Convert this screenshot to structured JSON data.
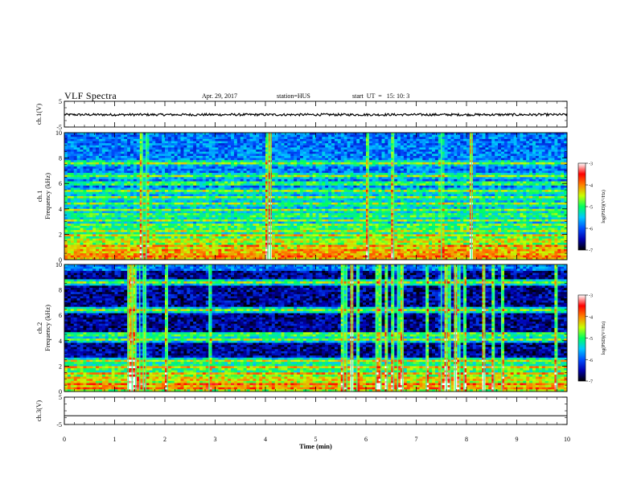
{
  "header": {
    "title": "VLF Spectra",
    "date": "Apr. 29, 2017",
    "station": "station=HUS",
    "start": "start  UT  =   15: 10: 3"
  },
  "chart_data": [
    {
      "type": "line",
      "panel": "ch1-waveform",
      "ylabel": "ch.1(V)",
      "ylim": [
        -5,
        5
      ],
      "yticks": [
        "5",
        "-5"
      ],
      "x": [
        0,
        10
      ],
      "series": [
        {
          "values": [
            -0.2,
            -0.2
          ]
        }
      ]
    },
    {
      "type": "heatmap",
      "panel": "ch1-spectrogram",
      "ylabel": "ch.1\nFrequency  (kHz)",
      "ylim": [
        0,
        10
      ],
      "yticks": [
        "0",
        "2",
        "4",
        "6",
        "8",
        "10"
      ],
      "xlim": [
        0,
        10
      ],
      "horizontal_bands_khz": [
        0.2,
        0.5,
        0.8,
        1.1,
        1.5,
        1.9,
        2.3,
        2.7,
        3.1,
        3.5,
        3.9,
        4.4,
        4.9,
        5.4,
        6.0,
        6.6,
        7.6
      ],
      "strong_bursts_min": [
        1.55,
        1.63,
        4.05,
        4.1,
        6.05,
        6.55,
        7.5,
        8.1
      ],
      "colorbar": {
        "label": "log(PSD)(V²/Hz)",
        "ticks": [
          "-3",
          "-4",
          "-5",
          "-6",
          "-7"
        ],
        "range": [
          -7,
          -3
        ],
        "colors": [
          "#000000",
          "#0000b0",
          "#0050ff",
          "#00c8ff",
          "#00ff60",
          "#c8ff00",
          "#ff8000",
          "#ff0000",
          "#ffffff"
        ]
      }
    },
    {
      "type": "heatmap",
      "panel": "ch2-spectrogram",
      "ylabel": "ch.2\nFrequency  (kHz)",
      "ylim": [
        0,
        10
      ],
      "yticks": [
        "0",
        "2",
        "4",
        "6",
        "8",
        "10"
      ],
      "xlim": [
        0,
        10
      ],
      "horizontal_bands_khz": [
        0.3,
        0.6,
        1.0,
        1.4,
        1.9,
        2.4,
        4.1,
        4.5,
        6.4,
        8.6
      ],
      "strong_bursts_min": [
        1.27,
        1.35,
        1.42,
        1.5,
        1.57,
        1.62,
        2.05,
        2.88,
        5.55,
        5.62,
        5.72,
        5.82,
        6.2,
        6.3,
        6.42,
        6.55,
        6.63,
        6.73,
        7.2,
        7.5,
        7.6,
        7.68,
        7.78,
        7.87,
        7.95,
        8.35,
        8.55,
        8.7,
        9.8
      ],
      "colorbar": {
        "label": "log(PSD)(V²/Hz)",
        "ticks": [
          "-3",
          "-4",
          "-5",
          "-6",
          "-7"
        ],
        "range": [
          -7,
          -3
        ],
        "colors": [
          "#000000",
          "#0000b0",
          "#0050ff",
          "#00c8ff",
          "#00ff60",
          "#c8ff00",
          "#ff8000",
          "#ff0000",
          "#ffffff"
        ]
      }
    },
    {
      "type": "line",
      "panel": "ch3-waveform",
      "ylabel": "ch.3(V)",
      "ylim": [
        -5,
        5
      ],
      "yticks": [
        "5",
        "-5"
      ],
      "x": [
        0,
        10
      ],
      "series": [
        {
          "values": [
            -1.8,
            -1.8
          ]
        }
      ]
    }
  ],
  "xaxis": {
    "label": "Time  (min)",
    "ticks": [
      "0",
      "1",
      "2",
      "3",
      "4",
      "5",
      "6",
      "7",
      "8",
      "9",
      "10"
    ],
    "range": [
      0,
      10
    ]
  }
}
